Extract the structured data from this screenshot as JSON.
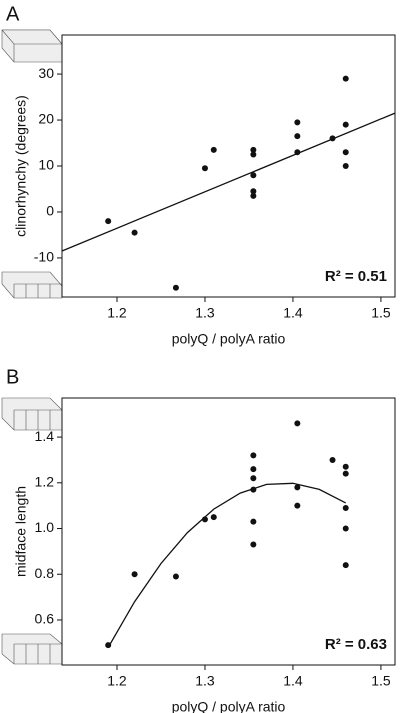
{
  "chart_data": [
    {
      "type": "scatter",
      "panel": "A",
      "xlabel": "polyQ / polyA ratio",
      "ylabel": "clinorhynchy (degrees)",
      "annotation": "R² = 0.51",
      "color": "#111111",
      "x": [
        1.19,
        1.22,
        1.267,
        1.3,
        1.31,
        1.355,
        1.355,
        1.355,
        1.355,
        1.355,
        1.405,
        1.405,
        1.405,
        1.445,
        1.46,
        1.46,
        1.46,
        1.46
      ],
      "values": [
        -2,
        -4.5,
        -16.5,
        9.5,
        13.5,
        13.5,
        12.5,
        8,
        4.5,
        3.5,
        19.5,
        16.5,
        13,
        16,
        29,
        19,
        13,
        10
      ],
      "fit_x": [
        1.1375,
        1.516
      ],
      "fit_values": [
        -8.5,
        21.5
      ],
      "xlim": [
        1.1375,
        1.516
      ],
      "ylim": [
        -18.5,
        38.5
      ],
      "xticks": [
        1.2,
        1.3,
        1.4,
        1.5
      ],
      "yticks": [
        -10,
        0,
        10,
        20,
        30
      ]
    },
    {
      "type": "scatter",
      "panel": "B",
      "xlabel": "polyQ / polyA ratio",
      "ylabel": "midface length",
      "annotation": "R² = 0.63",
      "color": "#111111",
      "x": [
        1.19,
        1.22,
        1.267,
        1.3,
        1.31,
        1.355,
        1.355,
        1.355,
        1.355,
        1.355,
        1.355,
        1.405,
        1.405,
        1.405,
        1.445,
        1.46,
        1.46,
        1.46,
        1.46,
        1.46
      ],
      "values": [
        0.49,
        0.8,
        0.79,
        1.04,
        1.05,
        1.32,
        1.26,
        1.22,
        1.17,
        1.03,
        0.93,
        1.46,
        1.18,
        1.1,
        1.3,
        1.27,
        1.24,
        1.09,
        1.0,
        0.84
      ],
      "fit_x": [
        1.19,
        1.22,
        1.25,
        1.28,
        1.31,
        1.34,
        1.37,
        1.4,
        1.43,
        1.46
      ],
      "fit_values": [
        0.48,
        0.68,
        0.847,
        0.982,
        1.085,
        1.155,
        1.193,
        1.198,
        1.171,
        1.112
      ],
      "xlim": [
        1.1375,
        1.516
      ],
      "ylim": [
        0.403,
        1.571
      ],
      "xticks": [
        1.2,
        1.3,
        1.4,
        1.5
      ],
      "yticks": [
        {
          "value": 0.6,
          "label": "0.6"
        },
        {
          "value": 0.8,
          "label": "0.8"
        },
        {
          "value": 1.0,
          "label": "1.0"
        },
        {
          "value": 1.2,
          "label": "1.2"
        },
        {
          "value": 1.4,
          "label": "1.4"
        }
      ]
    }
  ]
}
